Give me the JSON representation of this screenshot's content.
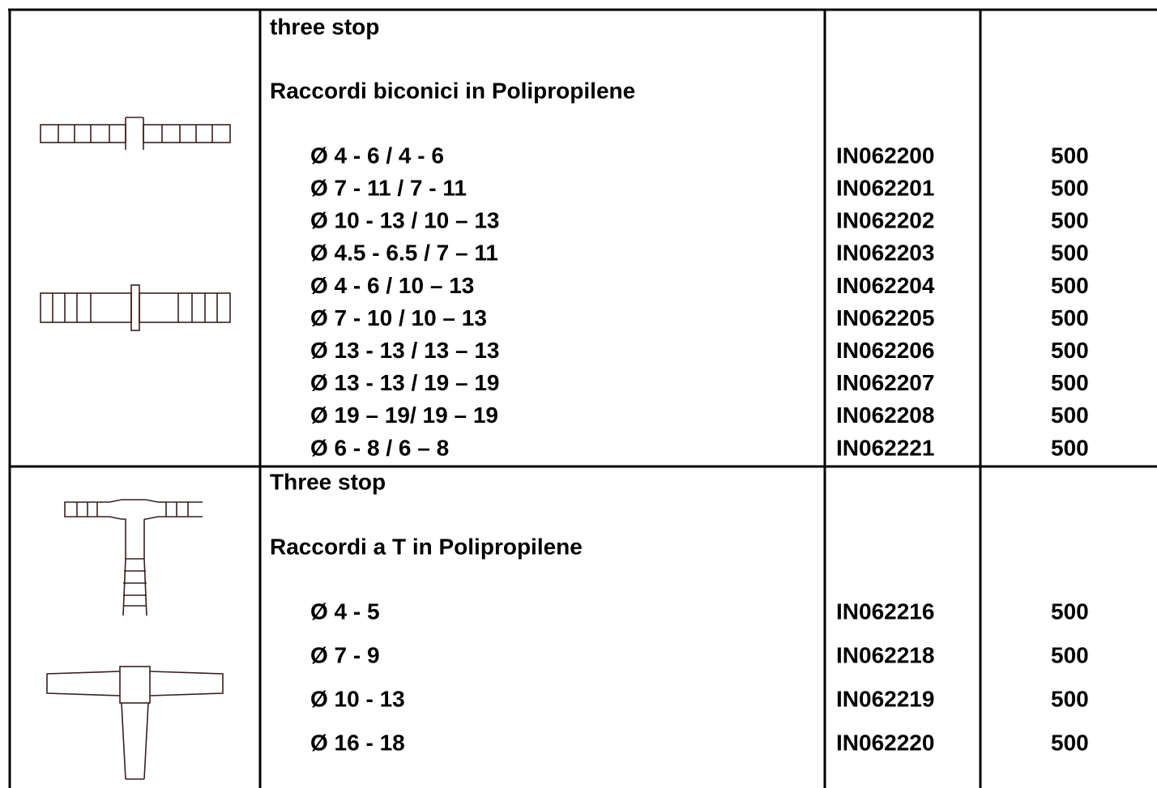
{
  "sections": [
    {
      "title": "three stop",
      "subtitle": "Raccordi biconici in Polipropilene",
      "rows": [
        [
          "Ø  4 - 6 / 4 - 6",
          "IN062200",
          "500"
        ],
        [
          "Ø  7 - 11 / 7 - 11",
          "IN062201",
          "500"
        ],
        [
          "Ø  10 - 13 / 10 – 13",
          "IN062202",
          "500"
        ],
        [
          "Ø  4.5 - 6.5 / 7 – 11",
          "IN062203",
          "500"
        ],
        [
          "Ø  4 - 6 / 10 – 13",
          "IN062204",
          "500"
        ],
        [
          "Ø  7 - 10 / 10 – 13",
          "IN062205",
          "500"
        ],
        [
          "Ø  13 - 13 / 13 – 13",
          "IN062206",
          "500"
        ],
        [
          "Ø  13 - 13 / 19 – 19",
          "IN062207",
          "500"
        ],
        [
          "Ø  19 – 19/ 19 – 19",
          "IN062208",
          "500"
        ],
        [
          "Ø  6 - 8 / 6 – 8",
          "IN062221",
          "500"
        ]
      ]
    },
    {
      "title": "Three stop",
      "subtitle": "Raccordi a T  in Polipropilene",
      "rows": [
        [
          "Ø  4 - 5",
          "IN062216",
          "500"
        ],
        [
          "Ø  7 - 9",
          "IN062218",
          "500"
        ],
        [
          "Ø  10 - 13",
          "IN062219",
          "500"
        ],
        [
          "Ø  16 - 18",
          "IN062220",
          "500"
        ]
      ]
    }
  ]
}
